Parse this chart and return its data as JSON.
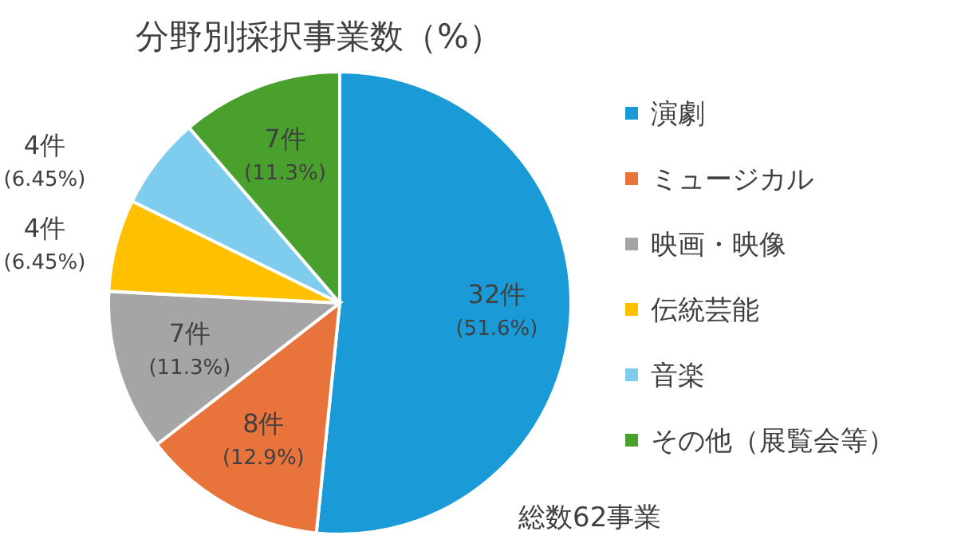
{
  "chart_data": {
    "type": "pie",
    "title": "分野別採択事業数（%）",
    "categories": [
      "演劇",
      "ミュージカル",
      "映画・映像",
      "伝統芸能",
      "音楽",
      "その他（展覧会等）"
    ],
    "values": [
      32,
      8,
      7,
      4,
      4,
      7
    ],
    "colors": [
      "#1a9bd7",
      "#e8743b",
      "#a5a5a5",
      "#ffc000",
      "#7fcdee",
      "#4aa02c"
    ],
    "value_labels": [
      "32件\n(51.6%)",
      "8件\n(12.9%)",
      "7件\n(11.3%)",
      "4件\n(6.45%)",
      "4件\n(6.45%)",
      "7件\n(11.3%)"
    ],
    "annotations": [
      "総数62事業"
    ],
    "legend": "right"
  }
}
